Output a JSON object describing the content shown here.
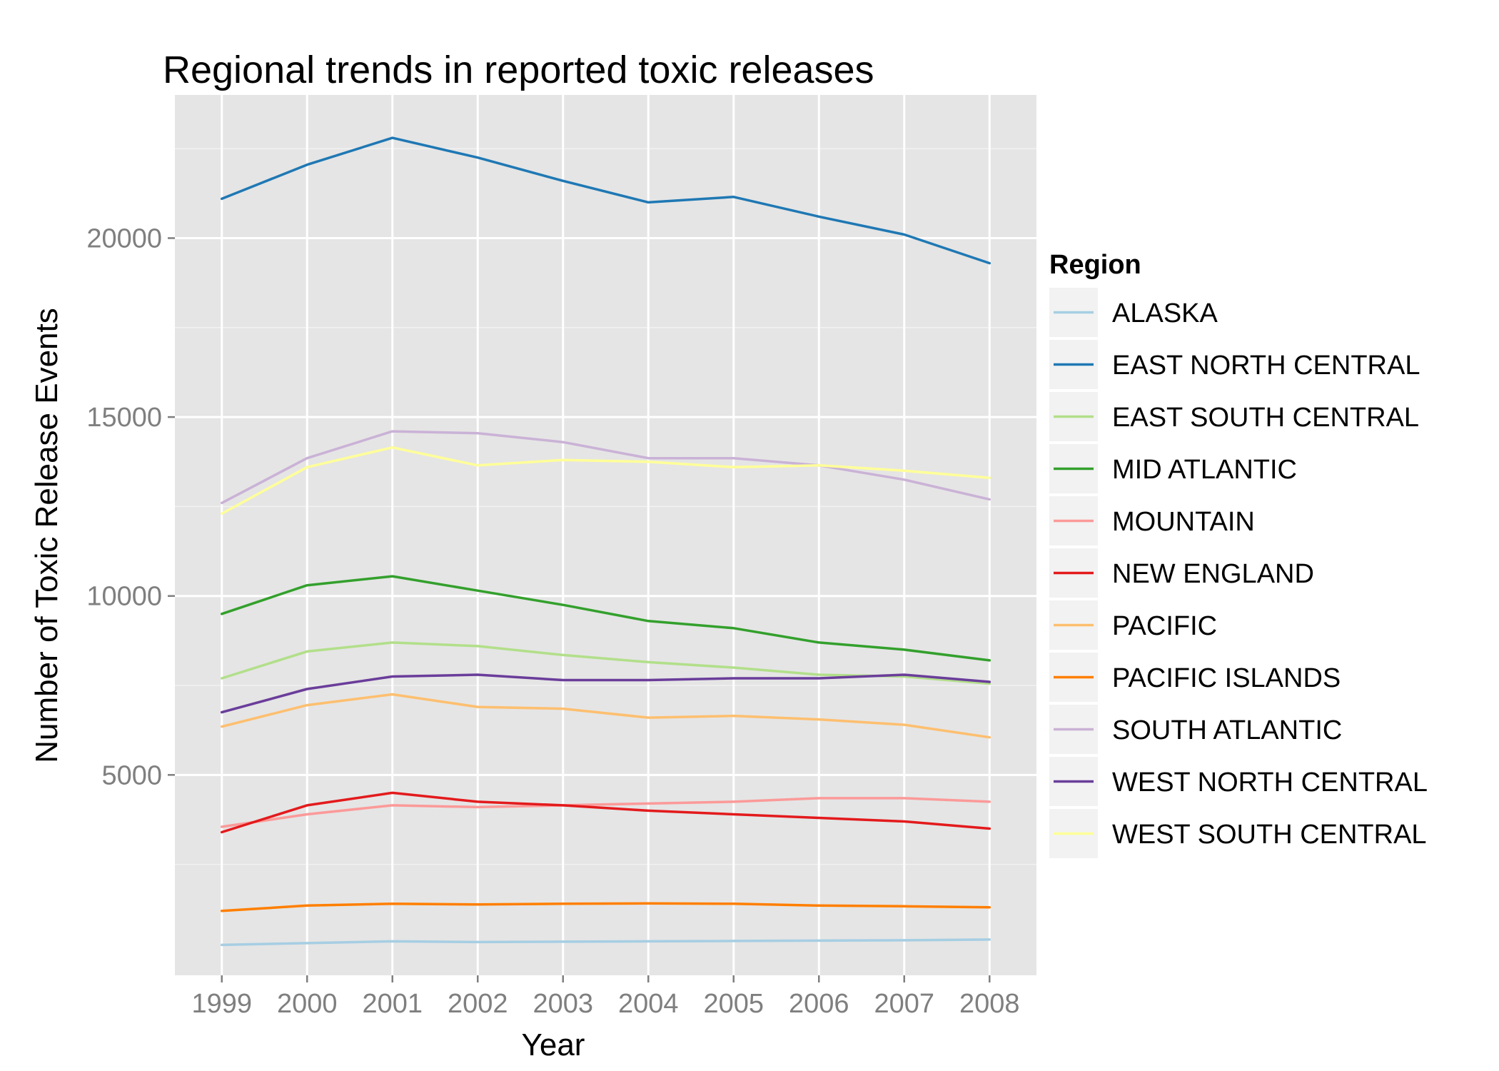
{
  "chart_data": {
    "type": "line",
    "title": "Regional trends in reported toxic releases",
    "xlabel": "Year",
    "ylabel": "Number of Toxic Release Events",
    "x": [
      1999,
      2000,
      2001,
      2002,
      2003,
      2004,
      2005,
      2006,
      2007,
      2008
    ],
    "xlim": [
      1998.45,
      2008.55
    ],
    "ylim": [
      -600,
      24000
    ],
    "y_ticks": [
      5000,
      10000,
      15000,
      20000
    ],
    "grid": true,
    "legend": {
      "title": "Region",
      "position": "right"
    },
    "series": [
      {
        "name": "ALASKA",
        "color": "#A6CEE3",
        "values": [
          250,
          300,
          350,
          330,
          340,
          350,
          360,
          370,
          380,
          400
        ]
      },
      {
        "name": "EAST NORTH CENTRAL",
        "color": "#1F78B4",
        "values": [
          21100,
          22050,
          22800,
          22250,
          21600,
          21000,
          21150,
          20600,
          20100,
          19300
        ]
      },
      {
        "name": "EAST SOUTH CENTRAL",
        "color": "#B2DF8A",
        "values": [
          7700,
          8450,
          8700,
          8600,
          8350,
          8150,
          8000,
          7800,
          7750,
          7550
        ]
      },
      {
        "name": "MID ATLANTIC",
        "color": "#33A02C",
        "values": [
          9500,
          10300,
          10550,
          10150,
          9750,
          9300,
          9100,
          8700,
          8500,
          8200
        ]
      },
      {
        "name": "MOUNTAIN",
        "color": "#FB9A99",
        "values": [
          3550,
          3900,
          4150,
          4100,
          4150,
          4200,
          4250,
          4350,
          4350,
          4250
        ]
      },
      {
        "name": "NEW ENGLAND",
        "color": "#E31A1C",
        "values": [
          3400,
          4150,
          4500,
          4250,
          4150,
          4000,
          3900,
          3800,
          3700,
          3500
        ]
      },
      {
        "name": "PACIFIC",
        "color": "#FDBF6F",
        "values": [
          6350,
          6950,
          7250,
          6900,
          6850,
          6600,
          6650,
          6550,
          6400,
          6050
        ]
      },
      {
        "name": "PACIFIC ISLANDS",
        "color": "#FF7F00",
        "values": [
          1200,
          1350,
          1400,
          1380,
          1400,
          1410,
          1400,
          1350,
          1330,
          1300
        ]
      },
      {
        "name": "SOUTH ATLANTIC",
        "color": "#CAB2D6",
        "values": [
          12600,
          13850,
          14600,
          14550,
          14300,
          13850,
          13850,
          13650,
          13250,
          12700
        ]
      },
      {
        "name": "WEST NORTH CENTRAL",
        "color": "#6A3D9A",
        "values": [
          6750,
          7400,
          7750,
          7800,
          7650,
          7650,
          7700,
          7700,
          7800,
          7600
        ]
      },
      {
        "name": "WEST SOUTH CENTRAL",
        "color": "#FFFF99",
        "values": [
          12300,
          13600,
          14150,
          13650,
          13800,
          13750,
          13600,
          13650,
          13500,
          13300
        ]
      }
    ]
  }
}
